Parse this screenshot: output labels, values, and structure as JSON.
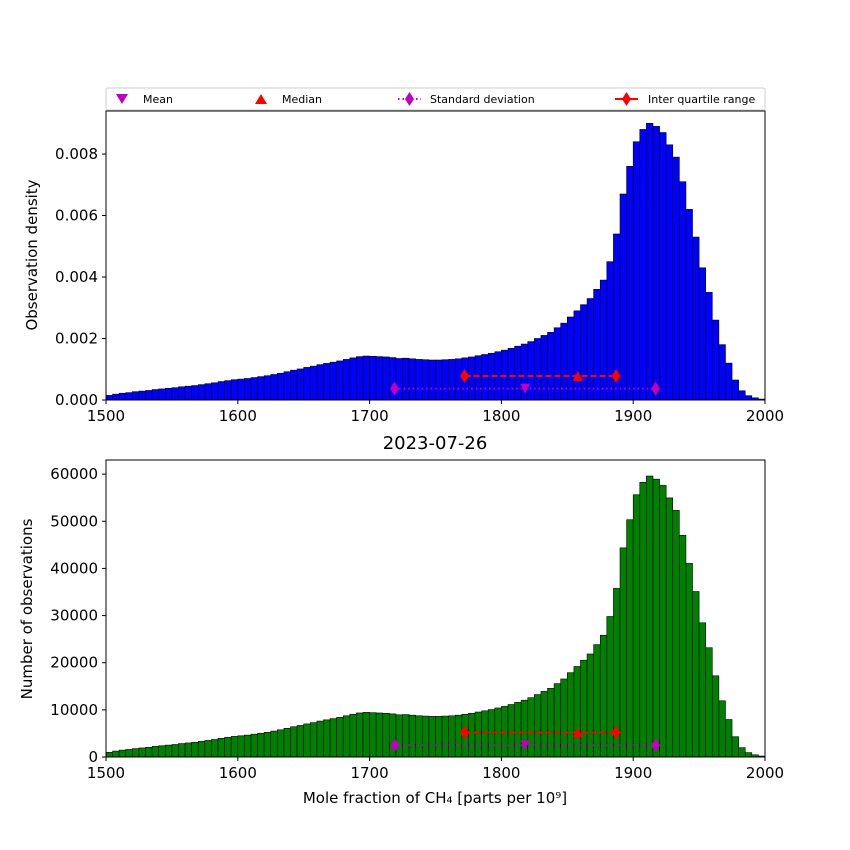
{
  "legend": {
    "placement": "top",
    "entries": [
      {
        "label": "Mean",
        "marker": "triangle-down",
        "color": "#bf00bf"
      },
      {
        "label": "Median",
        "marker": "triangle-up",
        "color": "#ff0000"
      },
      {
        "label": "Standard deviation",
        "marker": "diamond-dotted",
        "color": "#bf00bf"
      },
      {
        "label": "Inter quartile range",
        "marker": "diamond-dashed",
        "color": "#ff0000"
      }
    ]
  },
  "chart_data": [
    {
      "type": "bar",
      "id": "density",
      "title": "",
      "xlabel": "",
      "ylabel": "Observation density",
      "xlim": [
        1500,
        2000
      ],
      "ylim": [
        0,
        0.0094
      ],
      "xticks": [
        1500,
        1600,
        1700,
        1800,
        1900,
        2000
      ],
      "yticks": [
        0.0,
        0.002,
        0.004,
        0.006,
        0.008
      ],
      "ytick_labels": [
        "0.000",
        "0.002",
        "0.004",
        "0.006",
        "0.008"
      ],
      "color": "#0000ff",
      "bin_width": 5,
      "bin_start": 1500,
      "values": [
        0.00015,
        0.00019,
        0.00022,
        0.00024,
        0.00027,
        0.00029,
        0.00031,
        0.00034,
        0.00036,
        0.00038,
        0.0004,
        0.00043,
        0.00045,
        0.00047,
        0.0005,
        0.00053,
        0.00056,
        0.0006,
        0.00063,
        0.00066,
        0.00068,
        0.0007,
        0.00073,
        0.00076,
        0.00079,
        0.00083,
        0.00087,
        0.00092,
        0.00097,
        0.00101,
        0.00106,
        0.0011,
        0.00115,
        0.00119,
        0.00123,
        0.00127,
        0.00132,
        0.00137,
        0.00141,
        0.00143,
        0.00142,
        0.00141,
        0.0014,
        0.00138,
        0.00135,
        0.00136,
        0.00134,
        0.00132,
        0.00131,
        0.0013,
        0.0013,
        0.00131,
        0.00132,
        0.00134,
        0.00137,
        0.0014,
        0.00144,
        0.00148,
        0.00152,
        0.00157,
        0.00162,
        0.00168,
        0.00175,
        0.00182,
        0.0019,
        0.002,
        0.0021,
        0.0022,
        0.00235,
        0.0025,
        0.0027,
        0.0029,
        0.0031,
        0.0033,
        0.0036,
        0.0039,
        0.0045,
        0.0054,
        0.0067,
        0.0076,
        0.0084,
        0.0088,
        0.009,
        0.0089,
        0.0087,
        0.0083,
        0.0079,
        0.0071,
        0.0062,
        0.0053,
        0.0043,
        0.0035,
        0.0026,
        0.0018,
        0.0012,
        0.00065,
        0.0003,
        0.00014,
        7e-05,
        3e-05
      ],
      "stats_y": {
        "std": 0.00037,
        "iqr": 0.00078
      },
      "mean": 1818,
      "median": 1858,
      "std_range": [
        1719,
        1917
      ],
      "iqr_range": [
        1772,
        1887
      ]
    },
    {
      "type": "bar",
      "id": "counts",
      "title": "2023-07-26",
      "xlabel": "Mole fraction of CH₄ [parts per 10⁹]",
      "ylabel": "Number of observations",
      "xlim": [
        1500,
        2000
      ],
      "ylim": [
        0,
        63000
      ],
      "xticks": [
        1500,
        1600,
        1700,
        1800,
        1900,
        2000
      ],
      "yticks": [
        0,
        10000,
        20000,
        30000,
        40000,
        50000,
        60000
      ],
      "ytick_labels": [
        "0",
        "10000",
        "20000",
        "30000",
        "40000",
        "50000",
        "60000"
      ],
      "color": "#008000",
      "bin_width": 5,
      "bin_start": 1500,
      "values": [
        1000,
        1260,
        1460,
        1600,
        1780,
        1920,
        2050,
        2250,
        2390,
        2520,
        2650,
        2850,
        2980,
        3110,
        3310,
        3510,
        3710,
        3970,
        4170,
        4370,
        4500,
        4640,
        4840,
        5040,
        5240,
        5500,
        5760,
        6090,
        6420,
        6690,
        7020,
        7290,
        7620,
        7880,
        8140,
        8410,
        8740,
        9070,
        9340,
        9470,
        9400,
        9340,
        9270,
        9140,
        8940,
        9000,
        8870,
        8740,
        8680,
        8610,
        8610,
        8680,
        8740,
        8870,
        9070,
        9270,
        9540,
        9800,
        10060,
        10400,
        10730,
        11130,
        11590,
        12050,
        12580,
        13240,
        13910,
        14570,
        15560,
        16550,
        17880,
        19200,
        20530,
        21850,
        23840,
        25830,
        29800,
        35760,
        44370,
        50330,
        55630,
        58280,
        59600,
        58940,
        57610,
        54960,
        52310,
        47020,
        41060,
        35100,
        28470,
        23180,
        17220,
        11920,
        7950,
        4300,
        1990,
        930,
        460,
        200
      ],
      "stats_y": {
        "std": 2500,
        "iqr": 5200
      },
      "mean": 1818,
      "median": 1858,
      "std_range": [
        1719,
        1917
      ],
      "iqr_range": [
        1772,
        1887
      ]
    }
  ]
}
